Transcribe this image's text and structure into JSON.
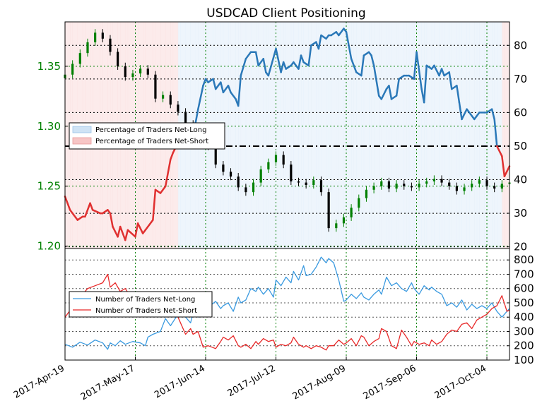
{
  "colors": {
    "net_long_line": "#2a78b8",
    "net_short_line": "#e03030",
    "net_long_fill": "#cfe3f5",
    "net_short_fill": "#f7c6c6",
    "count_long": "#3a9ae0",
    "count_short": "#e82828",
    "candle_up": "#008000",
    "candle_down": "#000000",
    "grid_v": "#008000",
    "grid_h": "#555555",
    "left_axis_text": "#008000"
  },
  "chart_data": [
    {
      "type": "line",
      "title": "USDCAD Client Positioning",
      "x_tick_labels": [
        "2017-Apr-19",
        "2017-May-17",
        "2017-Jun-14",
        "2017-Jul-12",
        "2017-Aug-09",
        "2017-Sep-06",
        "2017-Oct-04"
      ],
      "left_axis": {
        "ticks": [
          "1.20",
          "1.25",
          "1.30",
          "1.35"
        ],
        "ylim": [
          1.198,
          1.387
        ]
      },
      "right_axis": {
        "ticks": [
          "20",
          "30",
          "40",
          "50",
          "60",
          "70",
          "80"
        ],
        "ylim": [
          19.5,
          87
        ]
      },
      "reference_level": 50,
      "legend": [
        "Percentage of Traders Net-Long",
        "Percentage of Traders Net-Short"
      ],
      "legend_position": "center-left",
      "grid": true,
      "series": [
        {
          "name": "Percentage of Traders Net-Long",
          "axis": "right",
          "x_days": [
            0,
            2,
            3,
            5,
            7,
            8,
            10,
            11,
            14,
            15,
            17,
            18,
            19,
            21,
            22,
            24,
            25,
            28,
            29,
            31,
            32,
            35,
            36,
            38,
            40,
            42,
            43,
            45,
            46,
            48,
            50,
            52,
            53,
            55,
            56,
            57,
            59,
            60,
            62,
            63,
            65,
            66,
            68,
            69,
            70,
            72,
            74,
            76,
            77,
            79,
            80,
            81,
            84,
            86,
            87,
            88,
            90,
            91,
            93,
            94,
            95,
            97,
            98,
            100,
            101,
            102,
            104,
            105,
            106,
            108,
            109,
            111,
            112,
            114,
            115,
            116,
            118,
            119,
            121,
            122,
            123,
            125,
            126,
            128,
            129,
            130,
            132,
            133,
            135,
            136,
            137,
            139,
            140,
            142,
            143,
            144,
            146,
            147,
            149,
            150,
            151,
            153,
            154,
            156,
            157,
            158,
            160,
            161,
            163,
            164,
            165,
            167,
            168,
            170,
            171,
            172,
            174,
            175,
            177
          ],
          "values": [
            35,
            31,
            30,
            28,
            29,
            29,
            33,
            31,
            30,
            30,
            31,
            30,
            26,
            23,
            26,
            22,
            25,
            23,
            27,
            24,
            25,
            28,
            37,
            36,
            38,
            46,
            48,
            51,
            50,
            52,
            54,
            57,
            61,
            68,
            70,
            69,
            70,
            67,
            69,
            66,
            68,
            66,
            64,
            62,
            71,
            76,
            78,
            78,
            74,
            76,
            72,
            71,
            79,
            72,
            75,
            73,
            74,
            75,
            73,
            77,
            75,
            74,
            80,
            81,
            79,
            83,
            82,
            83,
            83,
            84,
            83,
            85,
            84,
            76,
            74,
            72,
            71,
            77,
            78,
            77,
            74,
            65,
            64,
            67,
            68,
            64,
            65,
            70,
            71,
            71,
            71,
            70,
            78,
            67,
            63,
            74,
            73,
            74,
            71,
            73,
            71,
            72,
            67,
            68,
            63,
            58,
            61,
            60,
            58,
            59,
            60,
            60,
            60,
            61,
            58,
            50,
            47,
            41,
            44
          ]
        },
        {
          "name": "Percentage of Traders Net-Short",
          "axis": "right",
          "note": "equals 100 minus net-long; only the net-long line is drawn"
        }
      ],
      "candles": {
        "axis": "left",
        "x_days": [
          0,
          3,
          6,
          9,
          12,
          15,
          18,
          21,
          24,
          27,
          30,
          33,
          36,
          39,
          42,
          45,
          48,
          51,
          54,
          57,
          60,
          63,
          66,
          69,
          72,
          75,
          78,
          81,
          84,
          87,
          90,
          93,
          96,
          99,
          102,
          105,
          108,
          111,
          114,
          117,
          120,
          123,
          126,
          129,
          132,
          135,
          138,
          141,
          144,
          147,
          150,
          153,
          156,
          159,
          162,
          165,
          168,
          171,
          174,
          177
        ],
        "close": [
          1.343,
          1.352,
          1.361,
          1.37,
          1.378,
          1.373,
          1.362,
          1.35,
          1.341,
          1.344,
          1.348,
          1.343,
          1.323,
          1.326,
          1.318,
          1.312,
          1.302,
          1.293,
          1.29,
          1.283,
          1.268,
          1.262,
          1.258,
          1.249,
          1.245,
          1.253,
          1.264,
          1.27,
          1.276,
          1.268,
          1.254,
          1.253,
          1.251,
          1.255,
          1.245,
          1.215,
          1.219,
          1.224,
          1.232,
          1.24,
          1.247,
          1.25,
          1.254,
          1.248,
          1.252,
          1.25,
          1.249,
          1.252,
          1.254,
          1.256,
          1.253,
          1.25,
          1.246,
          1.249,
          1.252,
          1.255,
          1.25,
          1.248,
          1.252,
          1.253
        ]
      }
    },
    {
      "type": "line",
      "right_axis": {
        "ticks": [
          "100",
          "200",
          "300",
          "400",
          "500",
          "600",
          "700",
          "800"
        ],
        "ylim": [
          100,
          880
        ]
      },
      "legend": [
        "Number of Traders Net-Long",
        "Number of Traders Net-Short"
      ],
      "legend_position": "center-left",
      "grid": true,
      "series": [
        {
          "name": "Number of Traders Net-Long",
          "x_days": [
            0,
            3,
            6,
            9,
            12,
            15,
            17,
            18,
            20,
            22,
            24,
            27,
            30,
            32,
            33,
            35,
            38,
            40,
            42,
            45,
            48,
            50,
            51,
            53,
            55,
            57,
            60,
            62,
            63,
            65,
            67,
            69,
            70,
            72,
            74,
            76,
            77,
            79,
            81,
            83,
            84,
            86,
            88,
            90,
            91,
            93,
            95,
            96,
            98,
            100,
            102,
            104,
            105,
            107,
            109,
            111,
            112,
            114,
            116,
            118,
            119,
            121,
            123,
            125,
            126,
            128,
            130,
            132,
            134,
            136,
            138,
            139,
            141,
            143,
            145,
            146,
            148,
            150,
            152,
            154,
            156,
            158,
            160,
            162,
            164,
            166,
            168,
            170,
            172,
            174,
            176,
            177
          ],
          "values": [
            210,
            190,
            225,
            205,
            240,
            220,
            175,
            220,
            200,
            235,
            210,
            230,
            220,
            200,
            260,
            280,
            300,
            390,
            340,
            420,
            400,
            360,
            430,
            400,
            480,
            470,
            510,
            460,
            480,
            500,
            440,
            540,
            500,
            520,
            600,
            580,
            610,
            560,
            600,
            540,
            660,
            620,
            680,
            640,
            720,
            660,
            760,
            690,
            700,
            750,
            820,
            780,
            810,
            780,
            660,
            510,
            520,
            560,
            530,
            570,
            540,
            520,
            560,
            590,
            560,
            680,
            620,
            640,
            600,
            580,
            640,
            600,
            560,
            620,
            590,
            610,
            580,
            560,
            480,
            500,
            470,
            520,
            450,
            490,
            460,
            480,
            460,
            500,
            440,
            400,
            440,
            460
          ]
        },
        {
          "name": "Number of Traders Net-Short",
          "x_days": [
            0,
            3,
            6,
            9,
            12,
            15,
            17,
            18,
            20,
            22,
            24,
            27,
            30,
            32,
            33,
            35,
            38,
            40,
            42,
            45,
            48,
            50,
            51,
            53,
            55,
            57,
            60,
            62,
            63,
            65,
            67,
            69,
            70,
            72,
            74,
            76,
            77,
            79,
            81,
            83,
            84,
            86,
            88,
            90,
            91,
            93,
            95,
            96,
            98,
            100,
            102,
            104,
            105,
            107,
            109,
            111,
            112,
            114,
            116,
            118,
            119,
            121,
            123,
            125,
            126,
            128,
            130,
            132,
            134,
            136,
            138,
            139,
            141,
            143,
            145,
            146,
            148,
            150,
            152,
            154,
            156,
            158,
            160,
            162,
            164,
            166,
            168,
            170,
            172,
            174,
            176,
            177
          ],
          "values": [
            400,
            470,
            540,
            600,
            620,
            640,
            700,
            610,
            640,
            580,
            600,
            520,
            480,
            560,
            450,
            520,
            500,
            420,
            440,
            400,
            280,
            320,
            280,
            300,
            190,
            200,
            180,
            230,
            260,
            240,
            270,
            200,
            190,
            210,
            180,
            230,
            210,
            250,
            230,
            240,
            190,
            210,
            200,
            220,
            260,
            210,
            190,
            200,
            180,
            200,
            190,
            170,
            200,
            200,
            240,
            210,
            220,
            250,
            200,
            270,
            260,
            200,
            230,
            250,
            320,
            300,
            200,
            180,
            310,
            260,
            200,
            230,
            210,
            220,
            200,
            240,
            210,
            230,
            280,
            310,
            300,
            350,
            360,
            320,
            380,
            400,
            420,
            460,
            480,
            550,
            440,
            450
          ]
        }
      ]
    }
  ]
}
